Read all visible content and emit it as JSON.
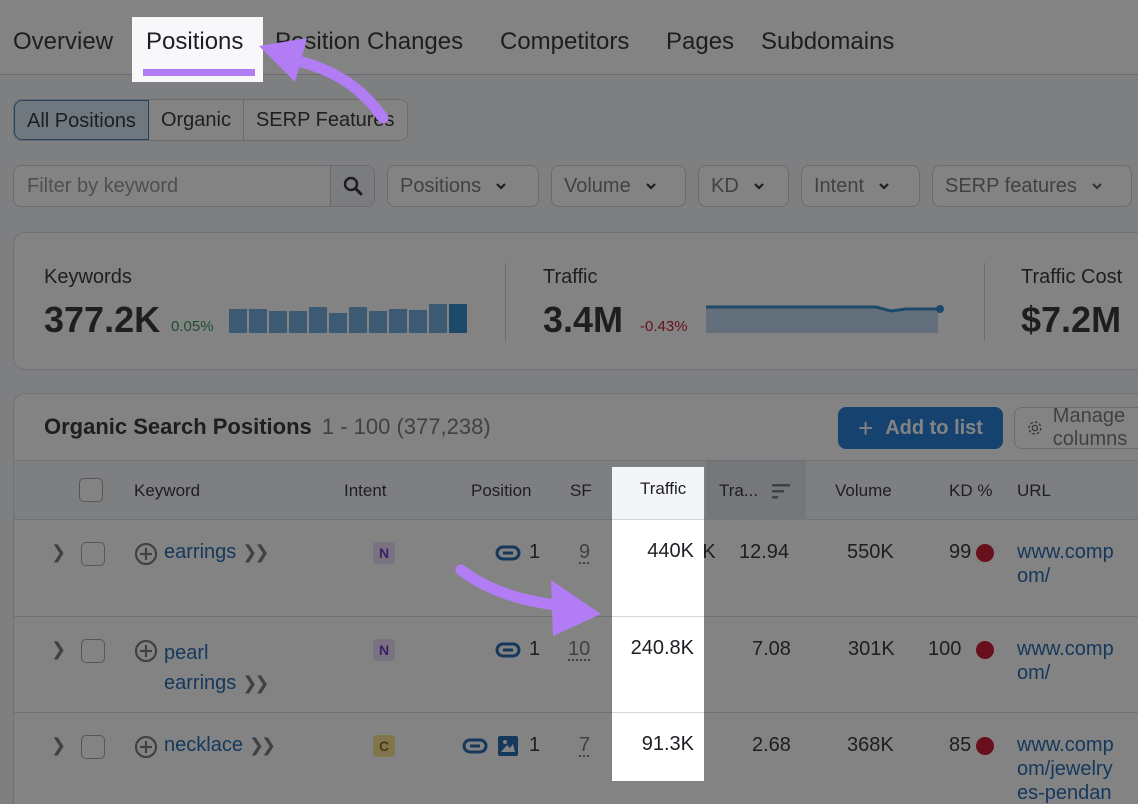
{
  "tabs": [
    {
      "label": "Overview",
      "active": false
    },
    {
      "label": "Positions",
      "active": true
    },
    {
      "label": "Position Changes",
      "active": false
    },
    {
      "label": "Competitors",
      "active": false
    },
    {
      "label": "Pages",
      "active": false
    },
    {
      "label": "Subdomains",
      "active": false
    }
  ],
  "segments": [
    {
      "label": "All Positions",
      "active": true
    },
    {
      "label": "Organic",
      "active": false
    },
    {
      "label": "SERP Features",
      "active": false
    }
  ],
  "filters": {
    "search_placeholder": "Filter by keyword",
    "dropdowns": [
      "Positions",
      "Volume",
      "KD",
      "Intent",
      "SERP features"
    ]
  },
  "summary": {
    "keywords": {
      "label": "Keywords",
      "value": "377.2K",
      "delta": "0.05%",
      "delta_color": "#1e8a4c",
      "bars": [
        74,
        76,
        68,
        68,
        82,
        64,
        80,
        70,
        76,
        72,
        90,
        92
      ]
    },
    "traffic": {
      "label": "Traffic",
      "value": "3.4M",
      "delta": "-0.43%",
      "delta_color": "#c4001a"
    },
    "traffic_cost": {
      "label": "Traffic Cost",
      "value": "$7.2M"
    }
  },
  "table": {
    "title": "Organic Search Positions",
    "range": "1 - 100 (377,238)",
    "add_button": "Add to list",
    "manage_button": "Manage columns",
    "columns": [
      "Keyword",
      "Intent",
      "Position",
      "SF",
      "Traffic",
      "Tra...",
      "Volume",
      "KD %",
      "URL"
    ],
    "rows": [
      {
        "keyword_line1": "earrings",
        "keyword_line2": "",
        "intent": "N",
        "intent_bg": "#e9d9fb",
        "intent_color": "#6a1fb8",
        "position": "1",
        "sf": "9",
        "traffic": "440K",
        "traffic_pct": "12.94",
        "volume": "550K",
        "kd": "99",
        "url_line1": "www.comp",
        "url_line2": "om/",
        "url_line3": ""
      },
      {
        "keyword_line1": "pearl",
        "keyword_line2": "earrings",
        "intent": "N",
        "intent_bg": "#e9d9fb",
        "intent_color": "#6a1fb8",
        "position": "1",
        "sf": "10",
        "traffic": "240.8K",
        "traffic_pct": "7.08",
        "volume": "301K",
        "kd": "100",
        "url_line1": "www.comp",
        "url_line2": "om/",
        "url_line3": ""
      },
      {
        "keyword_line1": "necklace",
        "keyword_line2": "",
        "intent": "C",
        "intent_bg": "#fbe08a",
        "intent_color": "#8a5a00",
        "position": "1",
        "sf": "7",
        "traffic": "91.3K",
        "traffic_pct": "2.68",
        "volume": "368K",
        "kd": "85",
        "url_line1": "www.comp",
        "url_line2": "om/jewelry",
        "url_line3": "es-pendan"
      }
    ]
  },
  "annotation": {
    "arrow_color": "#b27cf5"
  }
}
